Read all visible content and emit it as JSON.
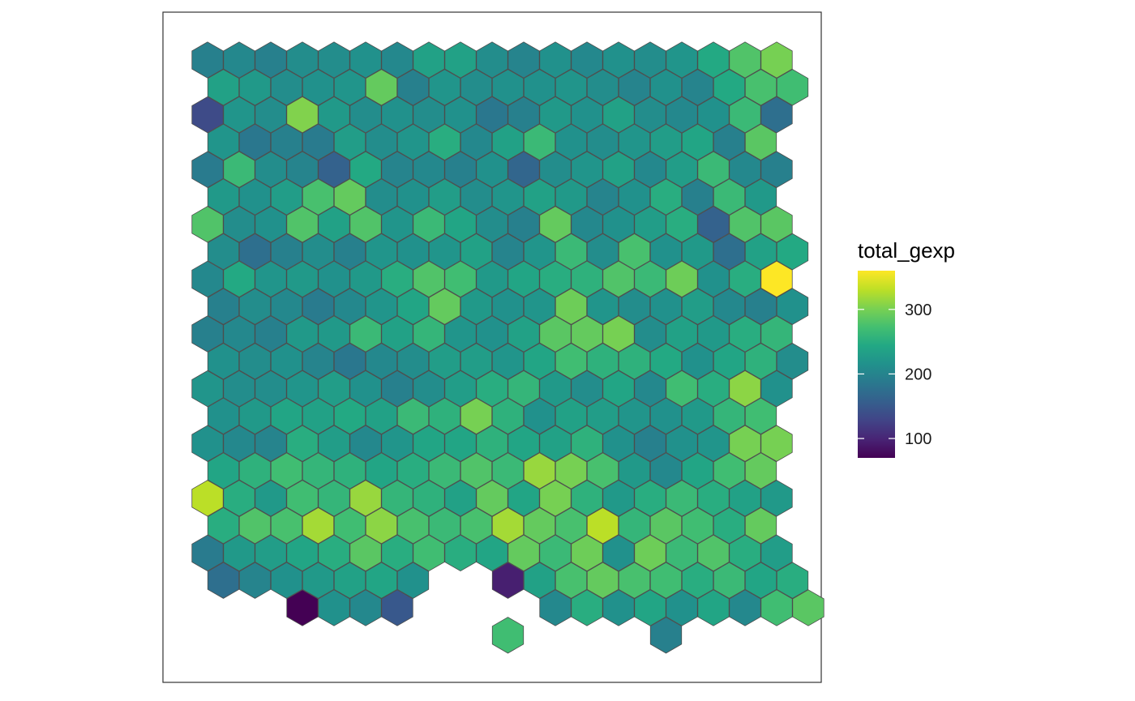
{
  "chart_data": {
    "type": "heatmap",
    "geometry": "hexagonal-grid",
    "title": "",
    "xlabel": "",
    "ylabel": "",
    "legend": {
      "title": "total_gexp",
      "position": "right",
      "ticks": [
        100,
        200,
        300
      ],
      "range": [
        70,
        360
      ],
      "colormap": "viridis"
    },
    "grid": false,
    "rows": [
      [
        195,
        205,
        195,
        210,
        210,
        215,
        205,
        235,
        235,
        210,
        200,
        215,
        205,
        215,
        210,
        220,
        245,
        280,
        300
      ],
      [
        235,
        225,
        210,
        215,
        220,
        290,
        195,
        220,
        210,
        215,
        215,
        220,
        210,
        200,
        215,
        200,
        245,
        275,
        270
      ],
      [
        135,
        220,
        210,
        305,
        225,
        210,
        215,
        210,
        215,
        185,
        195,
        225,
        215,
        235,
        210,
        205,
        215,
        265,
        175
      ],
      [
        220,
        185,
        195,
        190,
        230,
        210,
        220,
        250,
        205,
        235,
        265,
        215,
        210,
        220,
        230,
        240,
        195,
        285
      ],
      [
        190,
        265,
        210,
        200,
        160,
        245,
        200,
        205,
        195,
        215,
        165,
        210,
        220,
        235,
        205,
        230,
        265,
        205,
        195
      ],
      [
        225,
        215,
        230,
        275,
        290,
        210,
        215,
        230,
        210,
        220,
        235,
        225,
        200,
        215,
        250,
        195,
        265,
        225
      ],
      [
        280,
        210,
        215,
        280,
        235,
        280,
        220,
        265,
        240,
        210,
        195,
        290,
        205,
        215,
        230,
        250,
        160,
        280,
        285
      ],
      [
        210,
        175,
        195,
        210,
        195,
        220,
        215,
        220,
        235,
        200,
        220,
        265,
        210,
        275,
        215,
        225,
        175,
        235,
        245
      ],
      [
        205,
        245,
        220,
        225,
        215,
        225,
        250,
        280,
        270,
        225,
        240,
        250,
        255,
        280,
        265,
        295,
        215,
        250,
        360
      ],
      [
        195,
        210,
        205,
        190,
        205,
        220,
        240,
        290,
        225,
        215,
        220,
        295,
        220,
        210,
        215,
        230,
        205,
        195,
        215
      ],
      [
        195,
        205,
        195,
        225,
        225,
        265,
        235,
        260,
        220,
        215,
        235,
        285,
        290,
        300,
        210,
        235,
        225,
        250,
        260
      ],
      [
        215,
        210,
        215,
        200,
        185,
        205,
        210,
        230,
        230,
        220,
        240,
        270,
        255,
        255,
        245,
        215,
        240,
        255,
        210
      ],
      [
        220,
        210,
        210,
        220,
        230,
        215,
        195,
        210,
        230,
        250,
        260,
        225,
        210,
        240,
        205,
        270,
        250,
        310,
        215
      ],
      [
        215,
        225,
        240,
        235,
        245,
        235,
        265,
        255,
        300,
        255,
        215,
        235,
        230,
        220,
        215,
        225,
        260,
        270
      ],
      [
        215,
        205,
        200,
        250,
        230,
        205,
        220,
        240,
        240,
        255,
        240,
        235,
        255,
        215,
        195,
        215,
        220,
        300,
        300
      ],
      [
        240,
        255,
        270,
        260,
        255,
        240,
        250,
        265,
        280,
        265,
        315,
        300,
        275,
        225,
        205,
        240,
        270,
        290
      ],
      [
        330,
        250,
        225,
        270,
        260,
        315,
        260,
        255,
        235,
        290,
        240,
        300,
        255,
        225,
        250,
        265,
        250,
        235,
        225
      ],
      [
        250,
        280,
        275,
        320,
        270,
        310,
        275,
        265,
        275,
        320,
        290,
        275,
        330,
        260,
        285,
        270,
        250,
        290
      ],
      [
        190,
        225,
        230,
        240,
        250,
        285,
        250,
        270,
        250,
        240,
        290,
        265,
        295,
        215,
        295,
        265,
        280,
        250,
        230
      ],
      [
        175,
        200,
        215,
        225,
        235,
        240,
        215,
        null,
        null,
        95,
        235,
        275,
        290,
        275,
        270,
        250,
        265,
        240,
        250
      ],
      [
        null,
        null,
        null,
        70,
        215,
        205,
        150,
        null,
        null,
        null,
        null,
        205,
        250,
        215,
        240,
        215,
        240,
        205,
        270,
        285
      ],
      [
        null,
        null,
        null,
        null,
        null,
        null,
        null,
        null,
        null,
        null,
        null,
        null,
        null,
        null,
        null,
        null,
        null,
        null,
        null,
        270,
        null,
        null,
        null,
        null,
        null,
        null,
        null,
        null,
        null,
        195
      ]
    ]
  }
}
